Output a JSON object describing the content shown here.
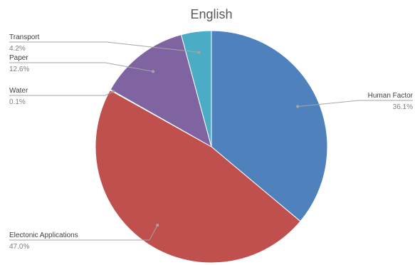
{
  "chart_data": {
    "type": "pie",
    "title": "English",
    "slices": [
      {
        "name": "Human Factor",
        "label": "36.1%",
        "value": 36.1,
        "color": "#4F81BD"
      },
      {
        "name": "Electonic Applications",
        "label": "47.0%",
        "value": 47.0,
        "color": "#C0504D"
      },
      {
        "name": "Water",
        "label": "0.1%",
        "value": 0.1,
        "color": "#9BBB59"
      },
      {
        "name": "Paper",
        "label": "12.6%",
        "value": 12.6,
        "color": "#8064A2"
      },
      {
        "name": "Transport",
        "label": "4.2%",
        "value": 4.2,
        "color": "#4BACC6"
      }
    ],
    "legend": "none",
    "data_labels": "outside-with-leader-lines"
  }
}
